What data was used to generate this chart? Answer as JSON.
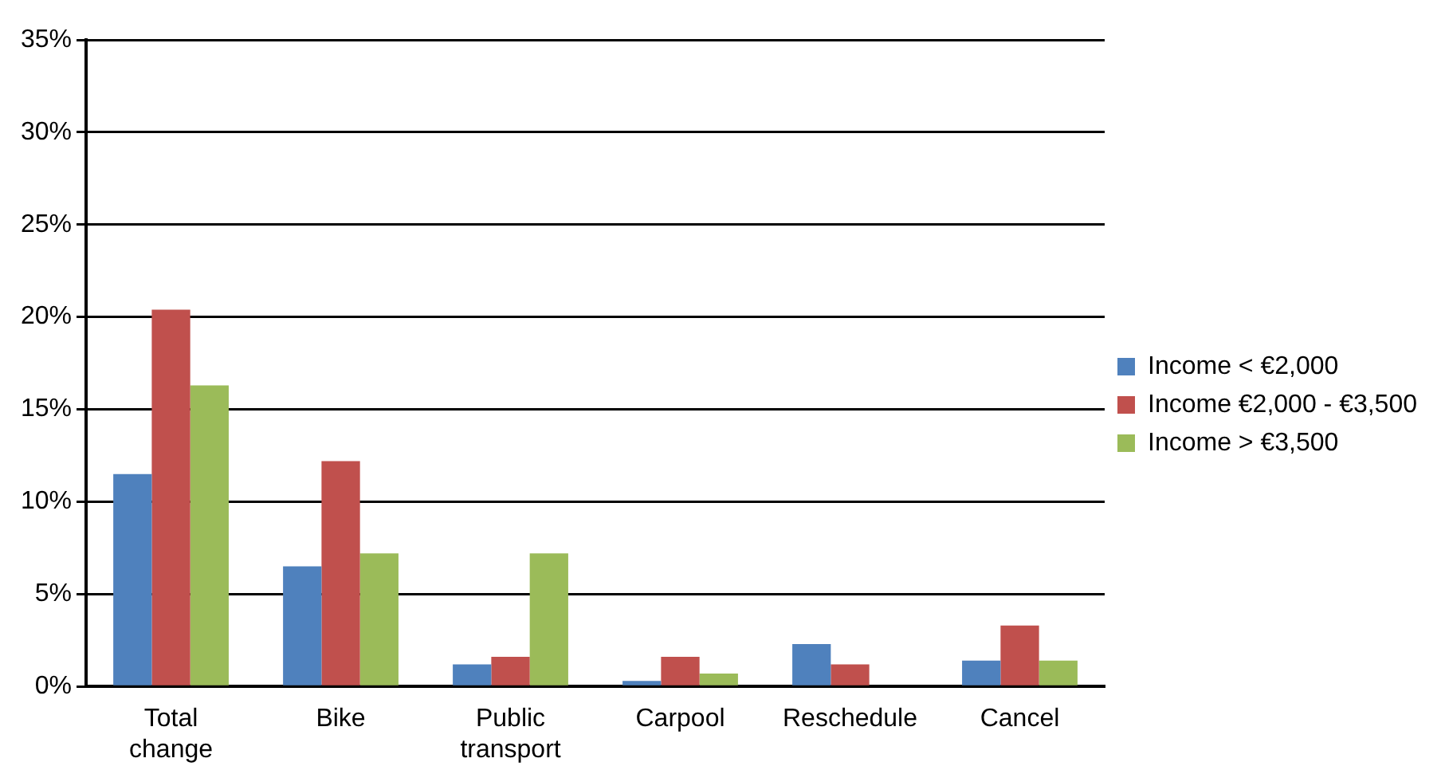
{
  "chart_data": {
    "type": "bar",
    "categories": [
      "Total change",
      "Bike",
      "Public transport",
      "Carpool",
      "Reschedule",
      "Cancel"
    ],
    "series": [
      {
        "name": "Income < €2,000",
        "color": "#4f81bd",
        "values": [
          11.5,
          6.5,
          1.2,
          0.3,
          2.3,
          1.4
        ]
      },
      {
        "name": "Income €2,000 - €3,500",
        "color": "#c0504d",
        "values": [
          20.4,
          12.2,
          1.6,
          1.6,
          1.2,
          3.3
        ]
      },
      {
        "name": "Income > €3,500",
        "color": "#9bbb59",
        "values": [
          16.3,
          7.2,
          7.2,
          0.7,
          0,
          1.4
        ]
      }
    ],
    "ylim": [
      0,
      35
    ],
    "yticks": [
      {
        "value": 0,
        "label": "0%"
      },
      {
        "value": 5,
        "label": "5%"
      },
      {
        "value": 10,
        "label": "10%"
      },
      {
        "value": 15,
        "label": "15%"
      },
      {
        "value": 20,
        "label": "20%"
      },
      {
        "value": 25,
        "label": "25%"
      },
      {
        "value": 30,
        "label": "30%"
      },
      {
        "value": 35,
        "label": "35%"
      }
    ],
    "grid": "y",
    "legend": "right"
  }
}
